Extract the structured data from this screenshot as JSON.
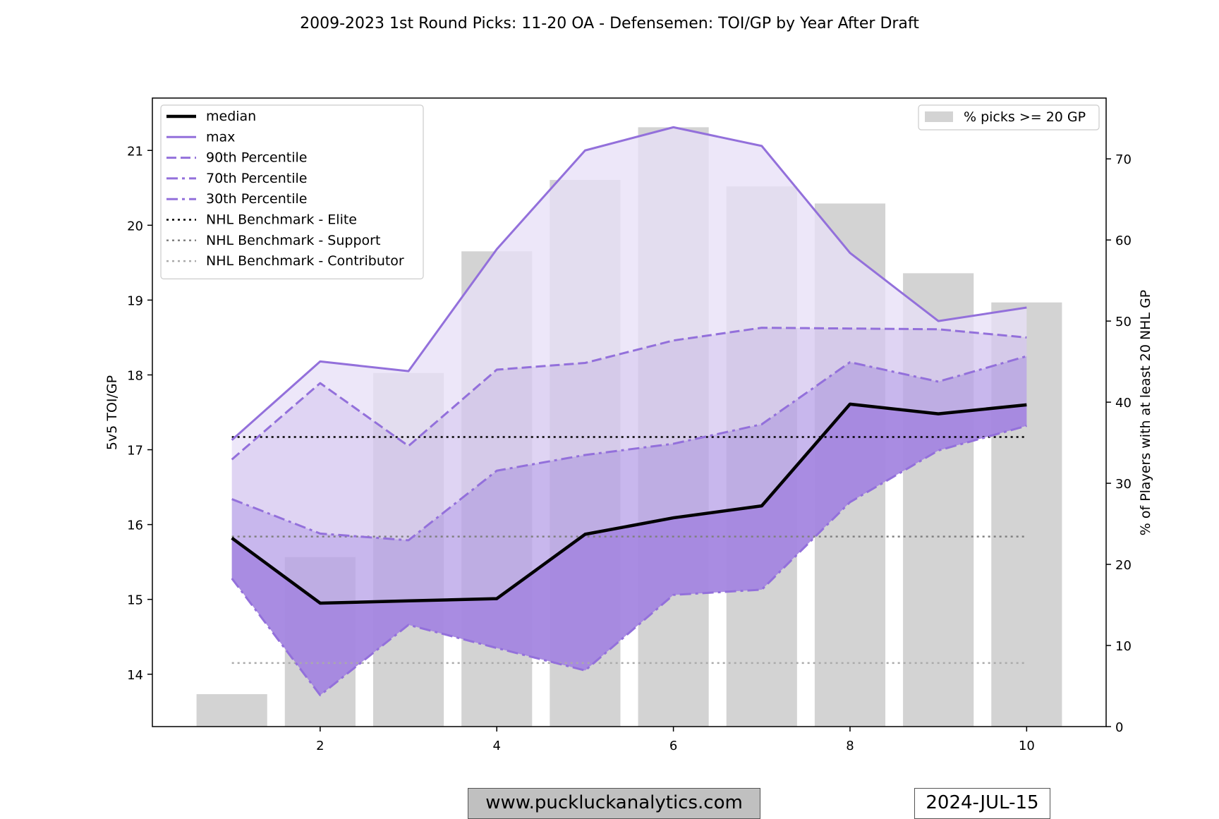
{
  "chart_data": {
    "type": "line",
    "title": "2009-2023 1st Round Picks: 11-20 OA - Defensemen: TOI/GP by Year After Draft",
    "xlabel": "",
    "ylabel": "5v5 TOI/GP",
    "y2label": "% of Players with at least 20 NHL GP",
    "xlim": [
      0.1,
      10.9
    ],
    "ylim": [
      13.3,
      21.7
    ],
    "y2lim": [
      0,
      77.5
    ],
    "xticks": [
      "2",
      "4",
      "6",
      "8",
      "10"
    ],
    "yticks": [
      "14",
      "15",
      "16",
      "17",
      "18",
      "19",
      "20",
      "21"
    ],
    "y2ticks": [
      "0",
      "10",
      "20",
      "30",
      "40",
      "50",
      "60",
      "70"
    ],
    "x": [
      1,
      2,
      3,
      4,
      5,
      6,
      7,
      8,
      9,
      10
    ],
    "series": [
      {
        "name": "median",
        "values": [
          15.82,
          14.95,
          14.98,
          15.01,
          15.87,
          16.09,
          16.25,
          17.61,
          17.48,
          17.6
        ],
        "color": "#000000",
        "style": "solid",
        "width": 4.5
      },
      {
        "name": "max",
        "values": [
          17.13,
          18.18,
          18.05,
          19.68,
          21.0,
          21.31,
          21.06,
          19.63,
          18.72,
          18.9
        ],
        "color": "#9370db",
        "style": "solid",
        "width": 3
      },
      {
        "name": "90th Percentile",
        "values": [
          16.87,
          17.89,
          17.05,
          18.07,
          18.16,
          18.46,
          18.63,
          18.62,
          18.61,
          18.5
        ],
        "color": "#9370db",
        "style": "dashed",
        "width": 3
      },
      {
        "name": "70th Percentile",
        "values": [
          16.34,
          15.88,
          15.79,
          16.72,
          16.93,
          17.08,
          17.34,
          18.17,
          17.91,
          18.25
        ],
        "color": "#9370db",
        "style": "dashdot",
        "width": 3
      },
      {
        "name": "30th Percentile",
        "values": [
          15.28,
          13.72,
          14.66,
          14.35,
          14.05,
          15.06,
          15.13,
          16.3,
          16.99,
          17.32
        ],
        "color": "#9370db",
        "style": "dashdot",
        "width": 3
      }
    ],
    "bands": [
      {
        "upper": "max",
        "lower": "90th Percentile",
        "color": "#e8e0f7"
      },
      {
        "upper": "90th Percentile",
        "lower": "70th Percentile",
        "color": "#d6c8f0"
      },
      {
        "upper": "70th Percentile",
        "lower": "30th Percentile",
        "color": "#b9a3e8"
      },
      {
        "upper": "30th Percentile",
        "lower": "30th Percentile",
        "color": "#a080df"
      }
    ],
    "benchmarks": [
      {
        "name": "NHL Benchmark - Elite",
        "value": 17.17,
        "color": "#000000"
      },
      {
        "name": "NHL Benchmark - Support",
        "value": 15.84,
        "color": "#808080"
      },
      {
        "name": "NHL Benchmark - Contributor",
        "value": 14.15,
        "color": "#aaaaaa"
      }
    ],
    "bars": {
      "name": "% picks >= 20 GP",
      "axis": "right",
      "color": "#d3d3d3",
      "values": [
        4.0,
        20.9,
        43.6,
        58.6,
        67.4,
        73.9,
        66.6,
        64.5,
        55.9,
        52.3
      ]
    },
    "legend": "upper-left",
    "legend2": "upper-right"
  },
  "footer": {
    "website": "www.puckluckanalytics.com",
    "date": "2024-JUL-15"
  }
}
